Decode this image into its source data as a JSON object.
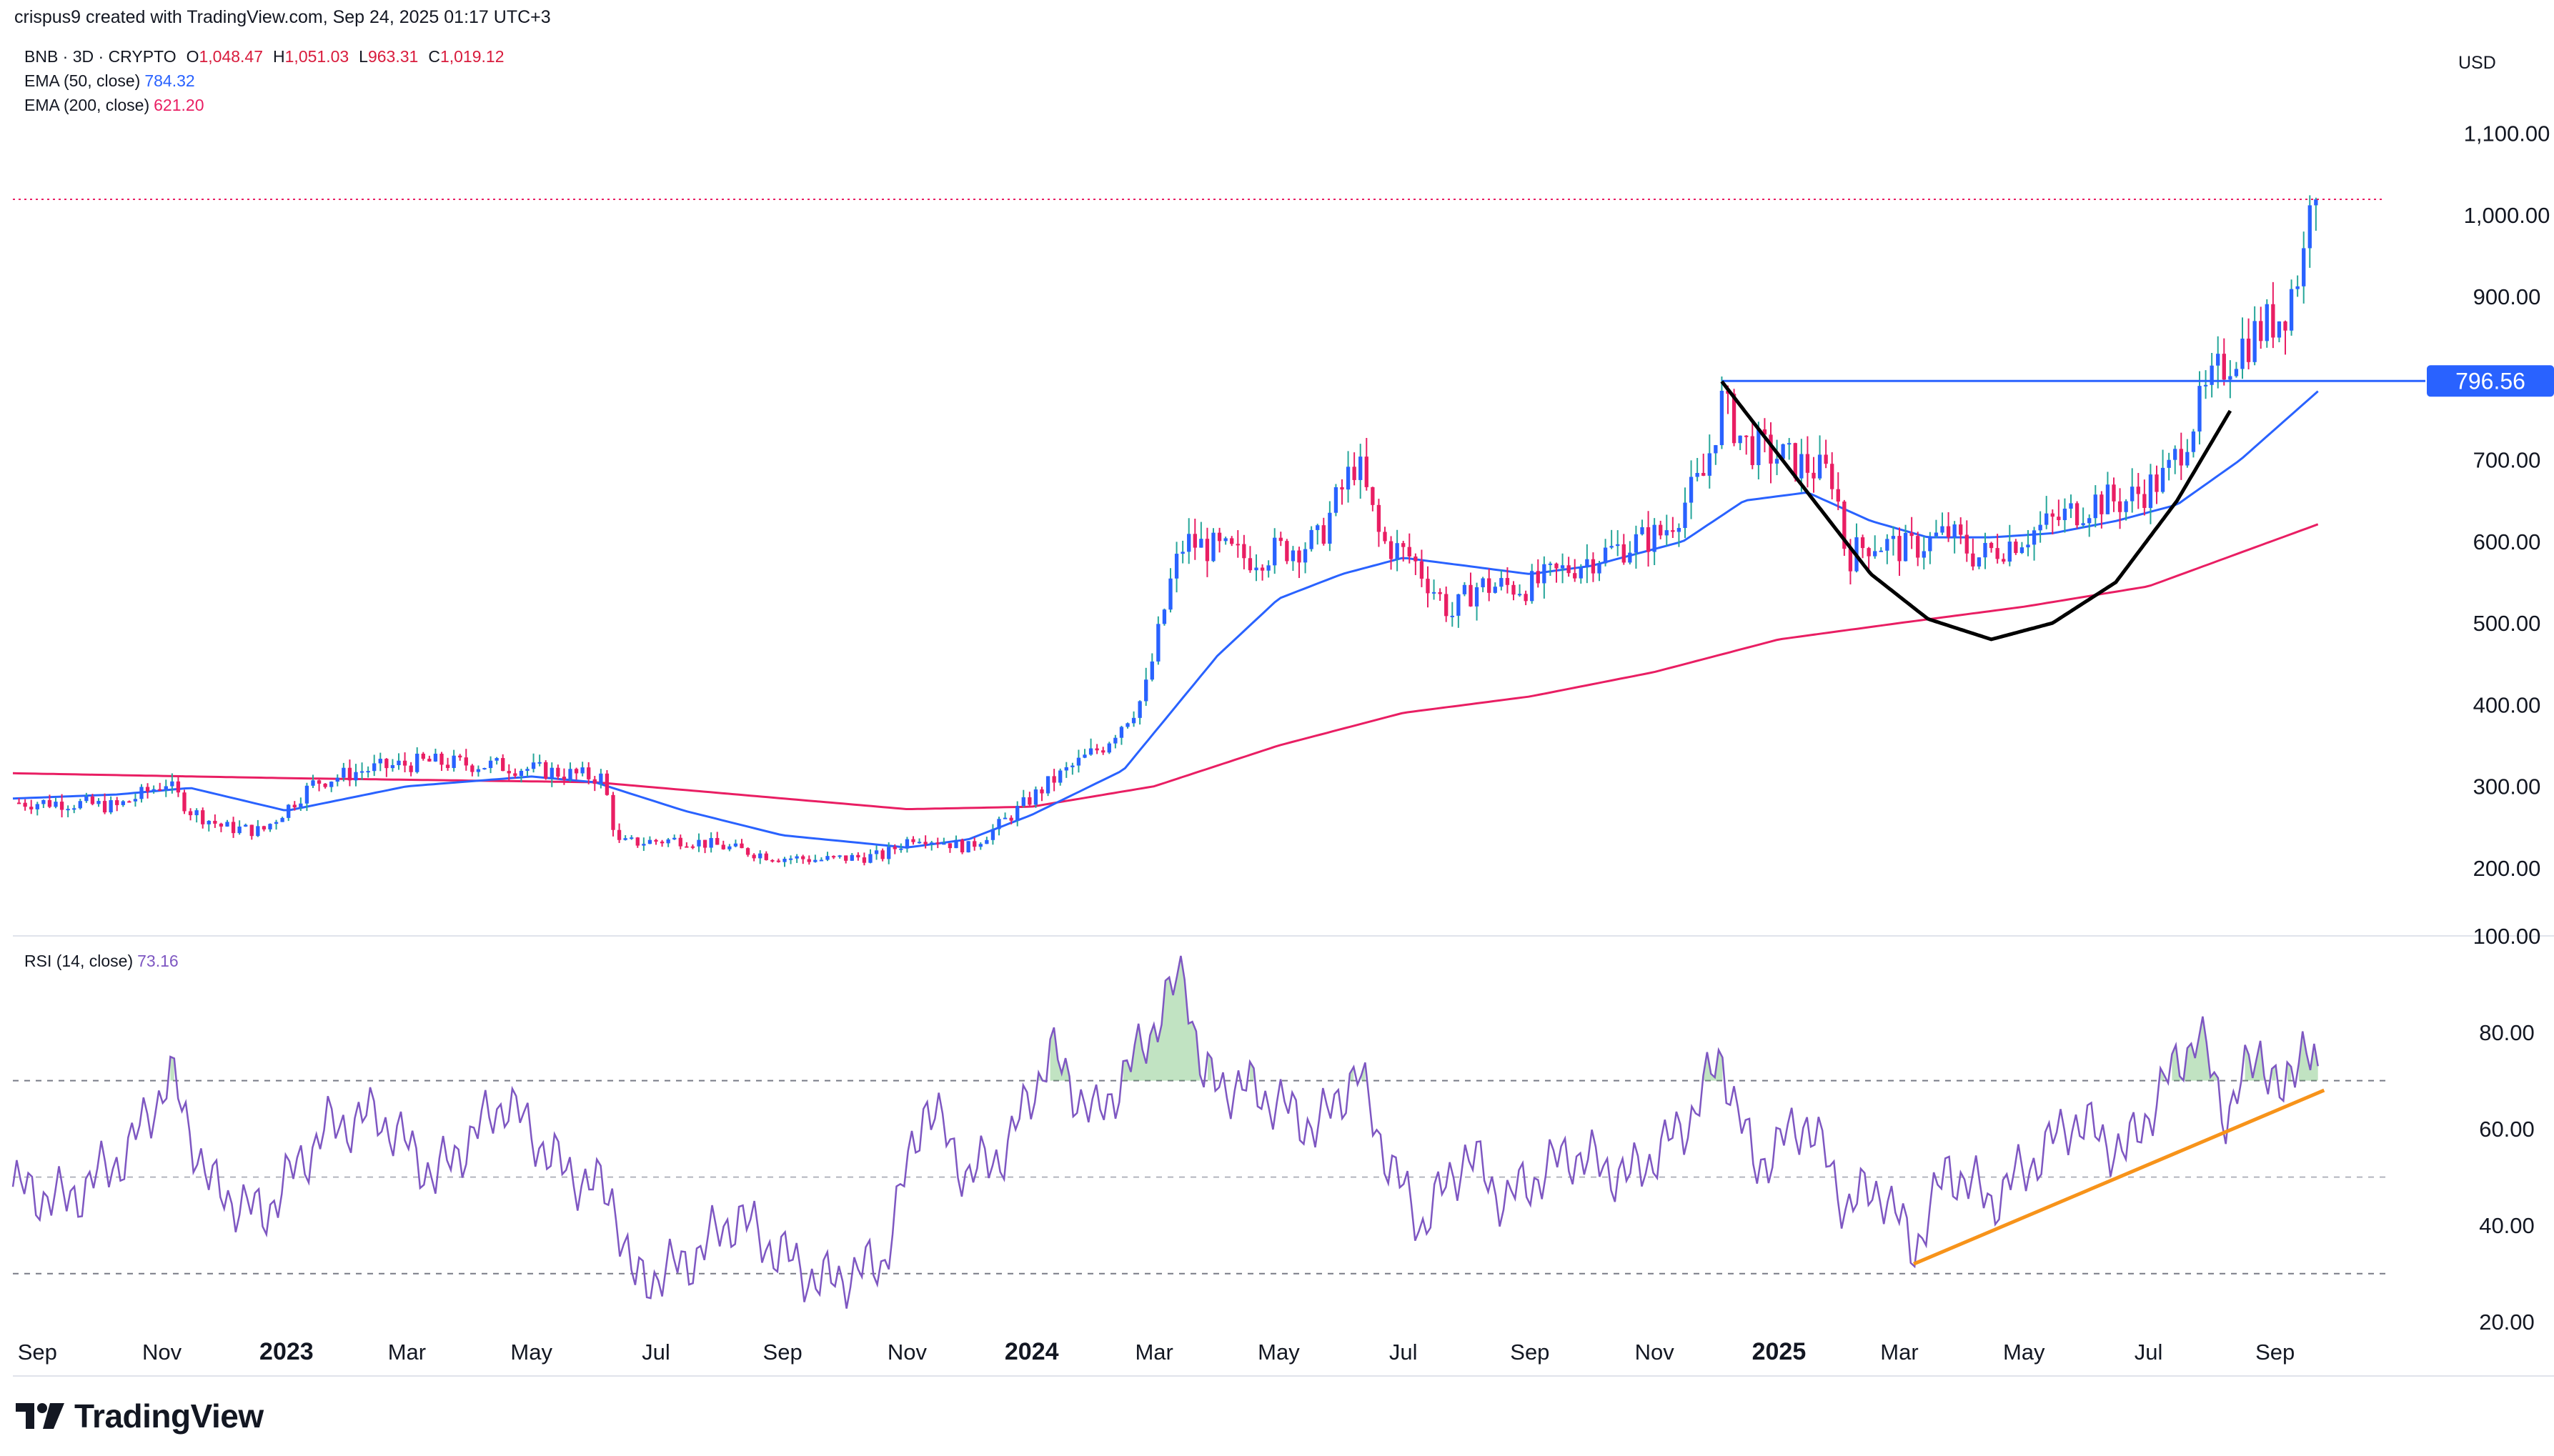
{
  "header": {
    "caption": "crispus9 created with TradingView.com, Sep 24, 2025 01:17 UTC+3"
  },
  "legend": {
    "symbol": "BNB · 3D · CRYPTO",
    "ohlc": [
      {
        "key": "O",
        "value": "1,048.47"
      },
      {
        "key": "H",
        "value": "1,051.03"
      },
      {
        "key": "L",
        "value": "963.31"
      },
      {
        "key": "C",
        "value": "1,019.12"
      }
    ],
    "ema50": {
      "label": "EMA (50, close)",
      "value": "784.32",
      "color": "#2962ff"
    },
    "ema200": {
      "label": "EMA (200, close)",
      "value": "621.20",
      "color": "#e91e63"
    },
    "rsi": {
      "label": "RSI (14, close)",
      "value": "73.16",
      "color": "#7e57c2"
    }
  },
  "logo": {
    "text": "TradingView"
  },
  "chart_data": [
    {
      "type": "candlestick",
      "currency": "USD",
      "ylim": [
        150,
        1150
      ],
      "y_ticks": [
        200,
        300,
        400,
        500,
        600,
        700,
        800,
        900,
        1000,
        1100
      ],
      "y_tick_labels": [
        "200.00",
        "300.00",
        "400.00",
        "500.00",
        "600.00",
        "700.00",
        "800.00",
        "900.00",
        "1,000.00",
        "1,100.00"
      ],
      "x_ticks": [
        "2022-09-01",
        "2022-11-01",
        "2023-01-01",
        "2023-03-01",
        "2023-05-01",
        "2023-07-01",
        "2023-09-01",
        "2023-11-01",
        "2024-01-01",
        "2024-03-01",
        "2024-05-01",
        "2024-07-01",
        "2024-09-01",
        "2024-11-01",
        "2025-01-01",
        "2025-03-01",
        "2025-05-01",
        "2025-07-01",
        "2025-09-01"
      ],
      "x_tick_labels": [
        "Sep",
        "Nov",
        "2023",
        "Mar",
        "May",
        "Jul",
        "Sep",
        "Nov",
        "2024",
        "Mar",
        "May",
        "Jul",
        "Sep",
        "Nov",
        "2025",
        "Mar",
        "May",
        "Jul",
        "Sep"
      ],
      "close_series": {
        "x": [
          "2022-08-20",
          "2022-09-15",
          "2022-10-10",
          "2022-11-03",
          "2022-11-15",
          "2022-12-01",
          "2022-12-20",
          "2023-01-15",
          "2023-02-08",
          "2023-03-10",
          "2023-04-18",
          "2023-05-10",
          "2023-06-05",
          "2023-06-12",
          "2023-07-15",
          "2023-08-15",
          "2023-08-30",
          "2023-09-20",
          "2023-10-20",
          "2023-11-05",
          "2023-12-01",
          "2023-12-15",
          "2024-01-10",
          "2024-02-05",
          "2024-02-25",
          "2024-03-10",
          "2024-03-16",
          "2024-04-15",
          "2024-05-20",
          "2024-06-08",
          "2024-06-20",
          "2024-07-05",
          "2024-07-25",
          "2024-08-05",
          "2024-09-01",
          "2024-10-01",
          "2024-11-05",
          "2024-11-25",
          "2024-12-04",
          "2024-12-15",
          "2025-01-05",
          "2025-01-28",
          "2025-02-03",
          "2025-02-15",
          "2025-03-05",
          "2025-03-25",
          "2025-04-08",
          "2025-04-25",
          "2025-05-12",
          "2025-06-05",
          "2025-06-20",
          "2025-07-10",
          "2025-07-25",
          "2025-08-05",
          "2025-08-15",
          "2025-08-25",
          "2025-09-05",
          "2025-09-15",
          "2025-09-18",
          "2025-09-22"
        ],
        "close": [
          280,
          280,
          275,
          305,
          270,
          250,
          245,
          305,
          320,
          330,
          325,
          318,
          310,
          230,
          235,
          220,
          213,
          210,
          215,
          240,
          225,
          250,
          305,
          350,
          410,
          560,
          600,
          580,
          600,
          700,
          600,
          580,
          510,
          545,
          545,
          580,
          610,
          680,
          770,
          720,
          700,
          680,
          580,
          600,
          590,
          610,
          580,
          600,
          620,
          650,
          650,
          680,
          760,
          810,
          840,
          860,
          880,
          950,
          1040,
          1019
        ]
      },
      "ema50": {
        "x": [
          "2022-08-20",
          "2022-10-10",
          "2022-11-15",
          "2023-01-01",
          "2023-03-01",
          "2023-05-01",
          "2023-06-01",
          "2023-07-15",
          "2023-09-01",
          "2023-11-01",
          "2023-12-01",
          "2024-01-01",
          "2024-02-15",
          "2024-04-01",
          "2024-05-01",
          "2024-06-01",
          "2024-07-01",
          "2024-08-01",
          "2024-09-01",
          "2024-10-01",
          "2024-11-15",
          "2024-12-15",
          "2025-01-15",
          "2025-02-15",
          "2025-03-15",
          "2025-04-15",
          "2025-05-15",
          "2025-06-15",
          "2025-07-15",
          "2025-08-15",
          "2025-09-22"
        ],
        "y": [
          285,
          290,
          298,
          270,
          300,
          312,
          305,
          270,
          240,
          225,
          235,
          265,
          320,
          460,
          530,
          560,
          580,
          570,
          560,
          570,
          600,
          650,
          660,
          625,
          605,
          605,
          610,
          625,
          645,
          700,
          784
        ]
      },
      "ema200": {
        "x": [
          "2022-08-20",
          "2023-01-01",
          "2023-06-01",
          "2023-11-01",
          "2024-01-01",
          "2024-03-01",
          "2024-05-01",
          "2024-07-01",
          "2024-09-01",
          "2024-11-01",
          "2025-01-01",
          "2025-03-01",
          "2025-05-01",
          "2025-07-01",
          "2025-09-22"
        ],
        "y": [
          316,
          310,
          305,
          272,
          275,
          300,
          350,
          390,
          410,
          440,
          480,
          500,
          520,
          545,
          621
        ]
      },
      "price_line": {
        "value": 1019.12
      },
      "resistance": {
        "value": 796.56,
        "label": "796.56",
        "start": "2024-12-04"
      },
      "cup_curve": {
        "x": [
          "2024-12-04",
          "2025-01-15",
          "2025-02-15",
          "2025-03-15",
          "2025-04-15",
          "2025-05-15",
          "2025-06-15",
          "2025-07-15",
          "2025-08-10"
        ],
        "y": [
          796,
          660,
          560,
          505,
          480,
          500,
          550,
          650,
          760
        ]
      }
    },
    {
      "type": "line",
      "name": "RSI (14, close)",
      "ylim": [
        15,
        100
      ],
      "y_ticks": [
        20,
        40,
        60,
        80,
        100
      ],
      "y_tick_labels": [
        "20.00",
        "40.00",
        "60.00",
        "80.00",
        "100.00"
      ],
      "bands": [
        30,
        50,
        70
      ],
      "x": [
        "2022-08-20",
        "2022-09-15",
        "2022-10-15",
        "2022-11-05",
        "2022-11-25",
        "2022-12-20",
        "2023-01-20",
        "2023-02-15",
        "2023-03-15",
        "2023-04-18",
        "2023-05-15",
        "2023-06-10",
        "2023-06-20",
        "2023-07-15",
        "2023-08-10",
        "2023-08-25",
        "2023-09-20",
        "2023-10-20",
        "2023-11-10",
        "2023-12-01",
        "2023-12-20",
        "2024-01-10",
        "2024-02-01",
        "2024-02-20",
        "2024-03-16",
        "2024-03-25",
        "2024-04-20",
        "2024-05-20",
        "2024-06-08",
        "2024-06-25",
        "2024-07-10",
        "2024-08-01",
        "2024-08-20",
        "2024-09-20",
        "2024-10-20",
        "2024-11-15",
        "2024-12-04",
        "2024-12-20",
        "2025-01-15",
        "2025-02-03",
        "2025-02-20",
        "2025-03-08",
        "2025-03-25",
        "2025-04-15",
        "2025-05-10",
        "2025-05-25",
        "2025-06-20",
        "2025-07-10",
        "2025-07-25",
        "2025-08-08",
        "2025-08-25",
        "2025-09-05",
        "2025-09-15",
        "2025-09-22"
      ],
      "y": [
        48,
        45,
        55,
        71,
        48,
        42,
        60,
        63,
        50,
        66,
        52,
        46,
        28,
        32,
        42,
        36,
        28,
        32,
        66,
        50,
        56,
        76,
        62,
        74,
        93,
        70,
        68,
        60,
        72,
        52,
        40,
        55,
        45,
        55,
        50,
        60,
        75,
        52,
        62,
        44,
        48,
        35,
        52,
        45,
        55,
        62,
        55,
        70,
        80,
        63,
        77,
        65,
        80,
        73
      ]
    },
    {
      "type": "annotation",
      "name": "rsi-trendline",
      "x": [
        "2025-03-08",
        "2025-09-25"
      ],
      "y": [
        32,
        68
      ]
    }
  ],
  "colors": {
    "up": "#2962ff",
    "down": "#e91e63",
    "ema50": "#2962ff",
    "ema200": "#e91e63",
    "rsi": "#7e57c2",
    "trend": "#f7931a",
    "resistance": "#2962ff",
    "cup": "#000000",
    "grid": "#e0e3eb",
    "text": "#131722"
  }
}
